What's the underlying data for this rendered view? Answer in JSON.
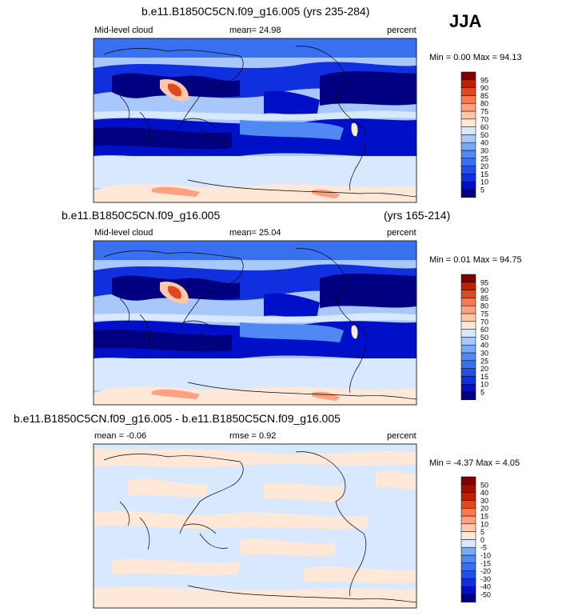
{
  "season": "JJA",
  "chart_data": [
    {
      "type": "heatmap",
      "title": "b.e11.B1850C5CN.f09_g16.005 (yrs 235-284)",
      "left_label": "Mid-level cloud",
      "mean_label": "mean=",
      "mean_value": "24.98",
      "units": "percent",
      "minmax_text": "Min =  0.00 Max = 94.13",
      "min": 0.0,
      "max": 94.13,
      "levels": [
        5,
        10,
        15,
        20,
        25,
        30,
        40,
        50,
        60,
        70,
        75,
        80,
        85,
        90,
        95
      ],
      "colors": [
        "#000080",
        "#0010c8",
        "#1030e0",
        "#2050e8",
        "#3870f0",
        "#5088f4",
        "#78a8f8",
        "#a8c8fc",
        "#d8e8ff",
        "#ffe8d8",
        "#ffc8a8",
        "#ffa080",
        "#f87850",
        "#e04820",
        "#c02000",
        "#800000"
      ]
    },
    {
      "type": "heatmap",
      "title": "b.e11.B1850C5CN.f09_g16.005",
      "title_right": "(yrs 165-214)",
      "left_label": "Mid-level cloud",
      "mean_label": "mean=",
      "mean_value": "25.04",
      "units": "percent",
      "minmax_text": "Min =  0.01 Max = 94.75",
      "min": 0.01,
      "max": 94.75,
      "levels": [
        5,
        10,
        15,
        20,
        25,
        30,
        40,
        50,
        60,
        70,
        75,
        80,
        85,
        90,
        95
      ],
      "colors": [
        "#000080",
        "#0010c8",
        "#1030e0",
        "#2050e8",
        "#3870f0",
        "#5088f4",
        "#78a8f8",
        "#a8c8fc",
        "#d8e8ff",
        "#ffe8d8",
        "#ffc8a8",
        "#ffa080",
        "#f87850",
        "#e04820",
        "#c02000",
        "#800000"
      ]
    },
    {
      "type": "heatmap",
      "title": "b.e11.B1850C5CN.f09_g16.005 - b.e11.B1850C5CN.f09_g16.005",
      "mean_label": "mean =",
      "mean_value": "-0.06",
      "rmse_label": "rmse =",
      "rmse_value": "0.92",
      "units": "percent",
      "minmax_text": "Min = -4.37 Max =  4.05",
      "min": -4.37,
      "max": 4.05,
      "levels": [
        -50,
        -40,
        -30,
        -20,
        -15,
        -10,
        -5,
        0,
        5,
        10,
        15,
        20,
        30,
        40,
        50
      ],
      "colors": [
        "#000080",
        "#0010c8",
        "#1030e0",
        "#2050e8",
        "#3870f0",
        "#5088f4",
        "#78a8f8",
        "#d8e8ff",
        "#ffe8d8",
        "#ffc8a8",
        "#ffa080",
        "#f87850",
        "#e04820",
        "#c02000",
        "#a01000",
        "#800000"
      ]
    }
  ]
}
